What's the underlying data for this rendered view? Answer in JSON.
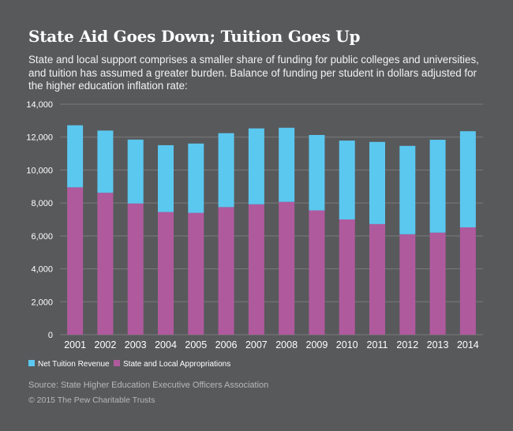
{
  "header": {
    "title": "State Aid Goes Down; Tuition Goes Up",
    "subtitle": "State and local support comprises a smaller share of funding for public colleges and universities, and tuition has assumed a greater burden. Balance of funding per student in dollars adjusted for the higher education inflation rate:"
  },
  "chart_data": {
    "type": "bar",
    "stacked": true,
    "title": "State Aid Goes Down; Tuition Goes Up",
    "categories": [
      "2001",
      "2002",
      "2003",
      "2004",
      "2005",
      "2006",
      "2007",
      "2008",
      "2009",
      "2010",
      "2011",
      "2012",
      "2013",
      "2014"
    ],
    "series": [
      {
        "name": "State and Local Appropriations",
        "color": "#b05a9e",
        "values": [
          8950,
          8620,
          7970,
          7450,
          7400,
          7750,
          7920,
          8070,
          7550,
          7000,
          6720,
          6100,
          6200,
          6520
        ]
      },
      {
        "name": "Net Tuition Revenue",
        "color": "#5bc8f0",
        "values": [
          3770,
          3780,
          3880,
          4060,
          4210,
          4490,
          4610,
          4500,
          4580,
          4790,
          4990,
          5370,
          5640,
          5840
        ]
      }
    ],
    "ylim": [
      0,
      14000
    ],
    "yticks": [
      0,
      2000,
      4000,
      6000,
      8000,
      10000,
      12000,
      14000
    ],
    "ytick_labels": [
      "0",
      "2,000",
      "4,000",
      "6,000",
      "8,000",
      "10,000",
      "12,000",
      "14,000"
    ],
    "xlabel": "",
    "ylabel": "",
    "grid": "horizontal",
    "gridColor": "#7a7b7d",
    "legend": [
      {
        "label": "Net Tuition Revenue",
        "color": "#5bc8f0"
      },
      {
        "label": "State and Local Appropriations",
        "color": "#b05a9e"
      }
    ],
    "legend_position": "bottom-left"
  },
  "footer": {
    "source": "Source: State Higher Education Executive Officers Association",
    "copyright": "© 2015 The Pew Charitable Trusts"
  }
}
